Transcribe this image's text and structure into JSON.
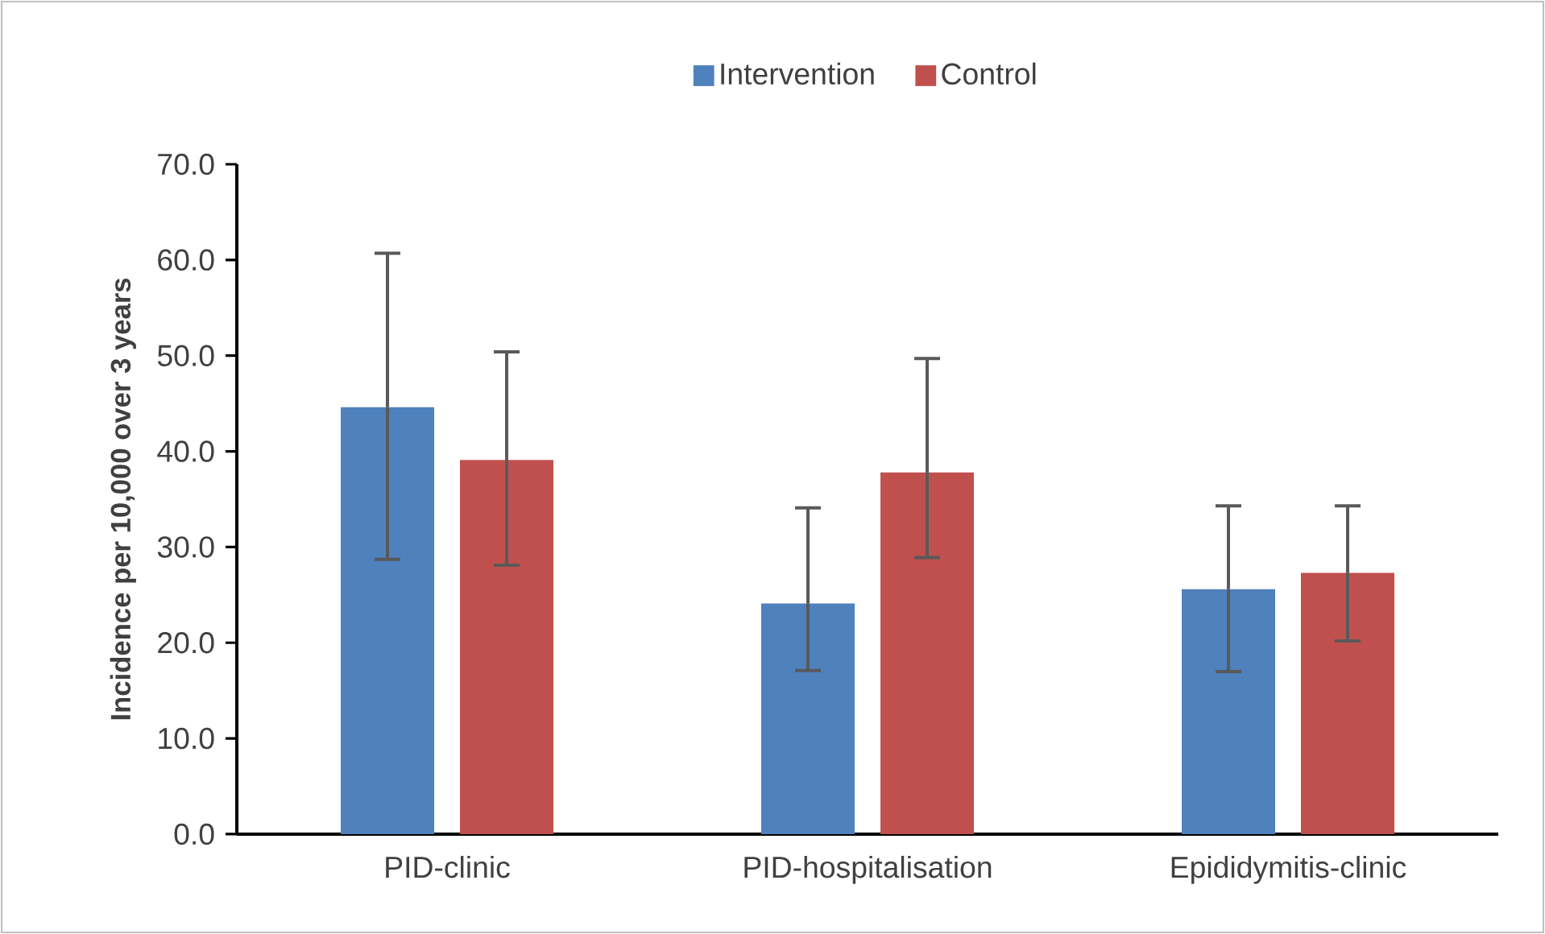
{
  "chart_data": {
    "type": "bar",
    "ylabel": "Incidence per 10,000 over 3 years",
    "categories": [
      "PID-clinic",
      "PID-hospitalisation",
      "Epididymitis-clinic"
    ],
    "series": [
      {
        "name": "Intervention",
        "color": "#4f81bd",
        "values": [
          44.6,
          24.1,
          25.6
        ],
        "errors": [
          [
            28.7,
            60.7
          ],
          [
            17.1,
            34.1
          ],
          [
            17.0,
            34.3
          ]
        ]
      },
      {
        "name": "Control",
        "color": "#c0504d",
        "values": [
          39.1,
          37.8,
          27.3
        ],
        "errors": [
          [
            28.1,
            50.4
          ],
          [
            28.9,
            49.7
          ],
          [
            20.2,
            34.3
          ]
        ]
      }
    ],
    "ylim": [
      0,
      70
    ],
    "yticks": [
      {
        "value": 0,
        "label": "0.0"
      },
      {
        "value": 10,
        "label": "10.0"
      },
      {
        "value": 20,
        "label": "20.0"
      },
      {
        "value": 30,
        "label": "30.0"
      },
      {
        "value": 40,
        "label": "40.0"
      },
      {
        "value": 50,
        "label": "50.0"
      },
      {
        "value": 60,
        "label": "60.0"
      },
      {
        "value": 70,
        "label": "70.0"
      }
    ],
    "grid": false,
    "legend": "top"
  }
}
